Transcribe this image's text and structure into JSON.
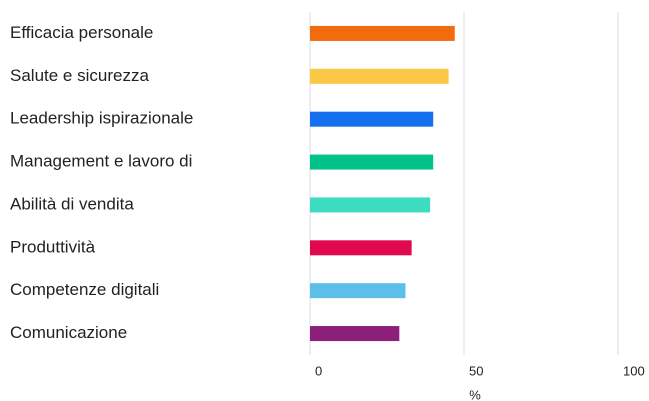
{
  "chart_data": {
    "type": "bar",
    "orientation": "horizontal",
    "categories": [
      "Efficacia personale",
      "Salute e sicurezza",
      "Leadership ispirazionale",
      "Management e lavoro di",
      "Abilità di vendita",
      "Produttività",
      "Competenze digitali",
      "Comunicazione"
    ],
    "values": [
      47,
      45,
      40,
      40,
      39,
      33,
      31,
      29
    ],
    "colors": [
      "#f26b0f",
      "#fbc846",
      "#1570ef",
      "#00c389",
      "#3ddcc1",
      "#e0094e",
      "#5bbfe9",
      "#8b1f7a"
    ],
    "xlim": [
      0,
      100
    ],
    "xticks": [
      0,
      50,
      100
    ],
    "x_label": "%",
    "grid": true
  }
}
